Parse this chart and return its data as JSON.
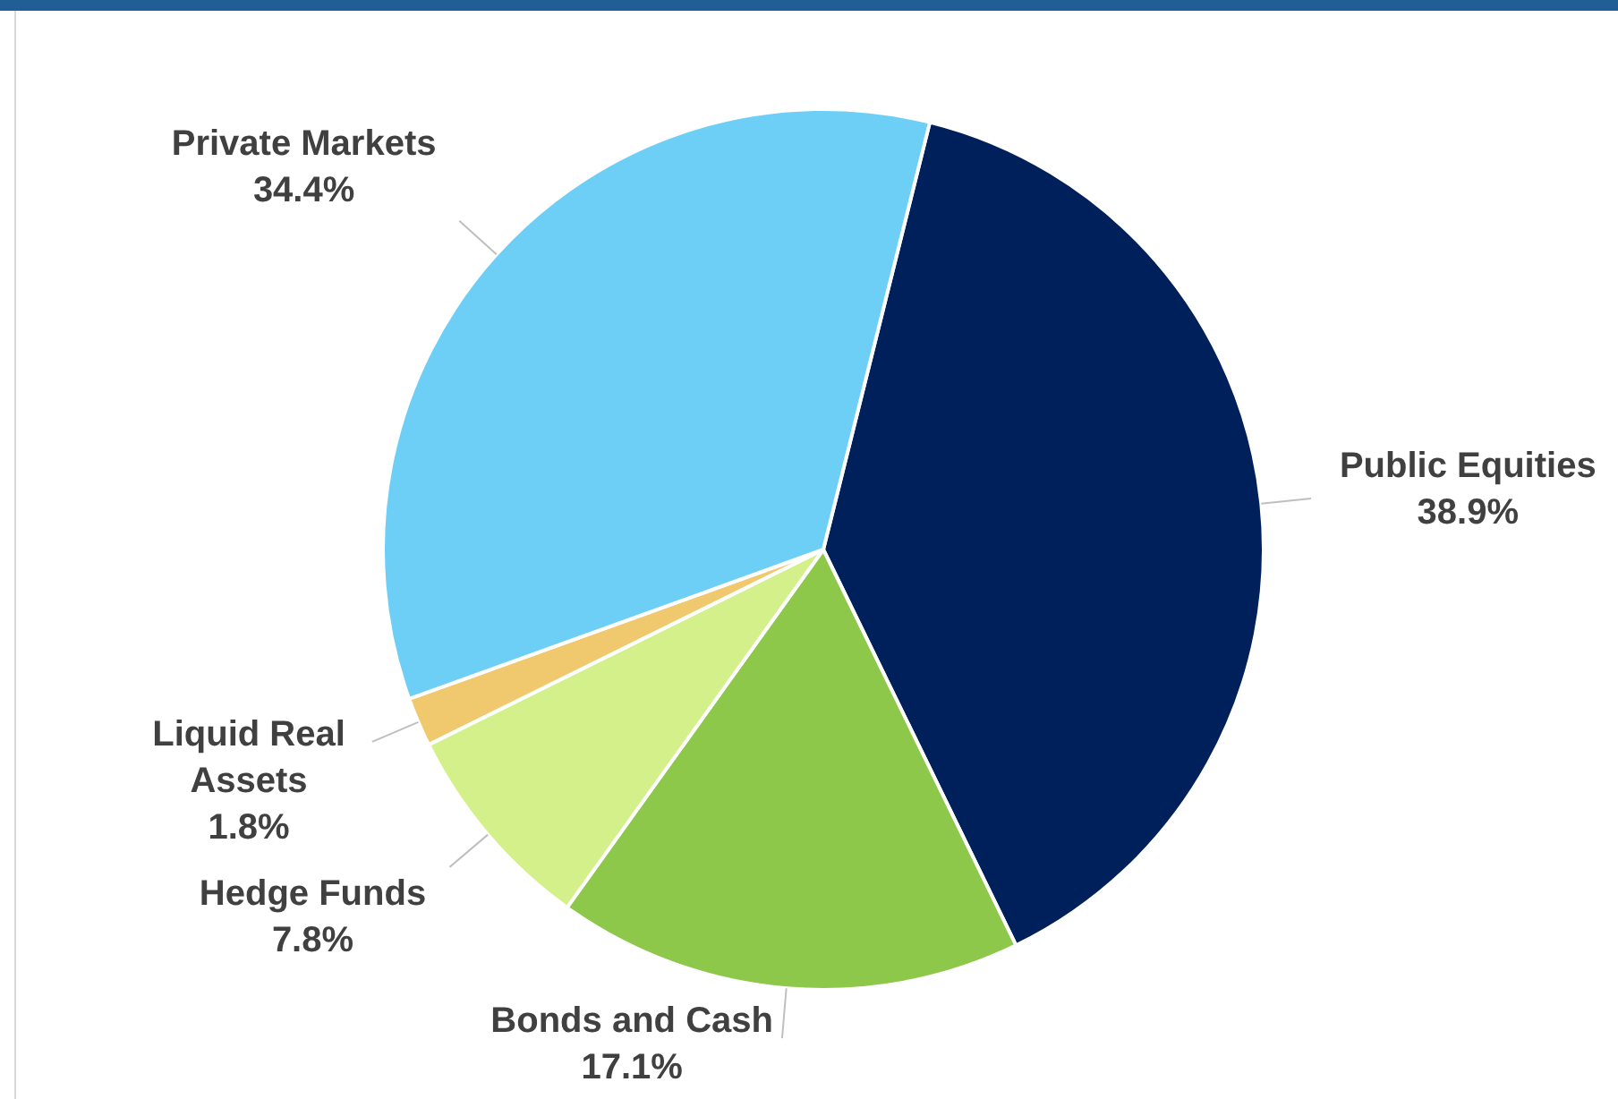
{
  "chart_data": {
    "type": "pie",
    "categories": [
      "Public Equities",
      "Bonds and Cash",
      "Hedge Funds",
      "Liquid Real Assets",
      "Private Markets"
    ],
    "values": [
      38.9,
      17.1,
      7.8,
      1.8,
      34.4
    ],
    "colors": [
      "#00205b",
      "#8dc84b",
      "#d4f08a",
      "#f0c96e",
      "#6dcff6"
    ],
    "value_labels": [
      "38.9%",
      "17.1%",
      "7.8%",
      "1.8%",
      "34.4%"
    ],
    "legend": false
  }
}
